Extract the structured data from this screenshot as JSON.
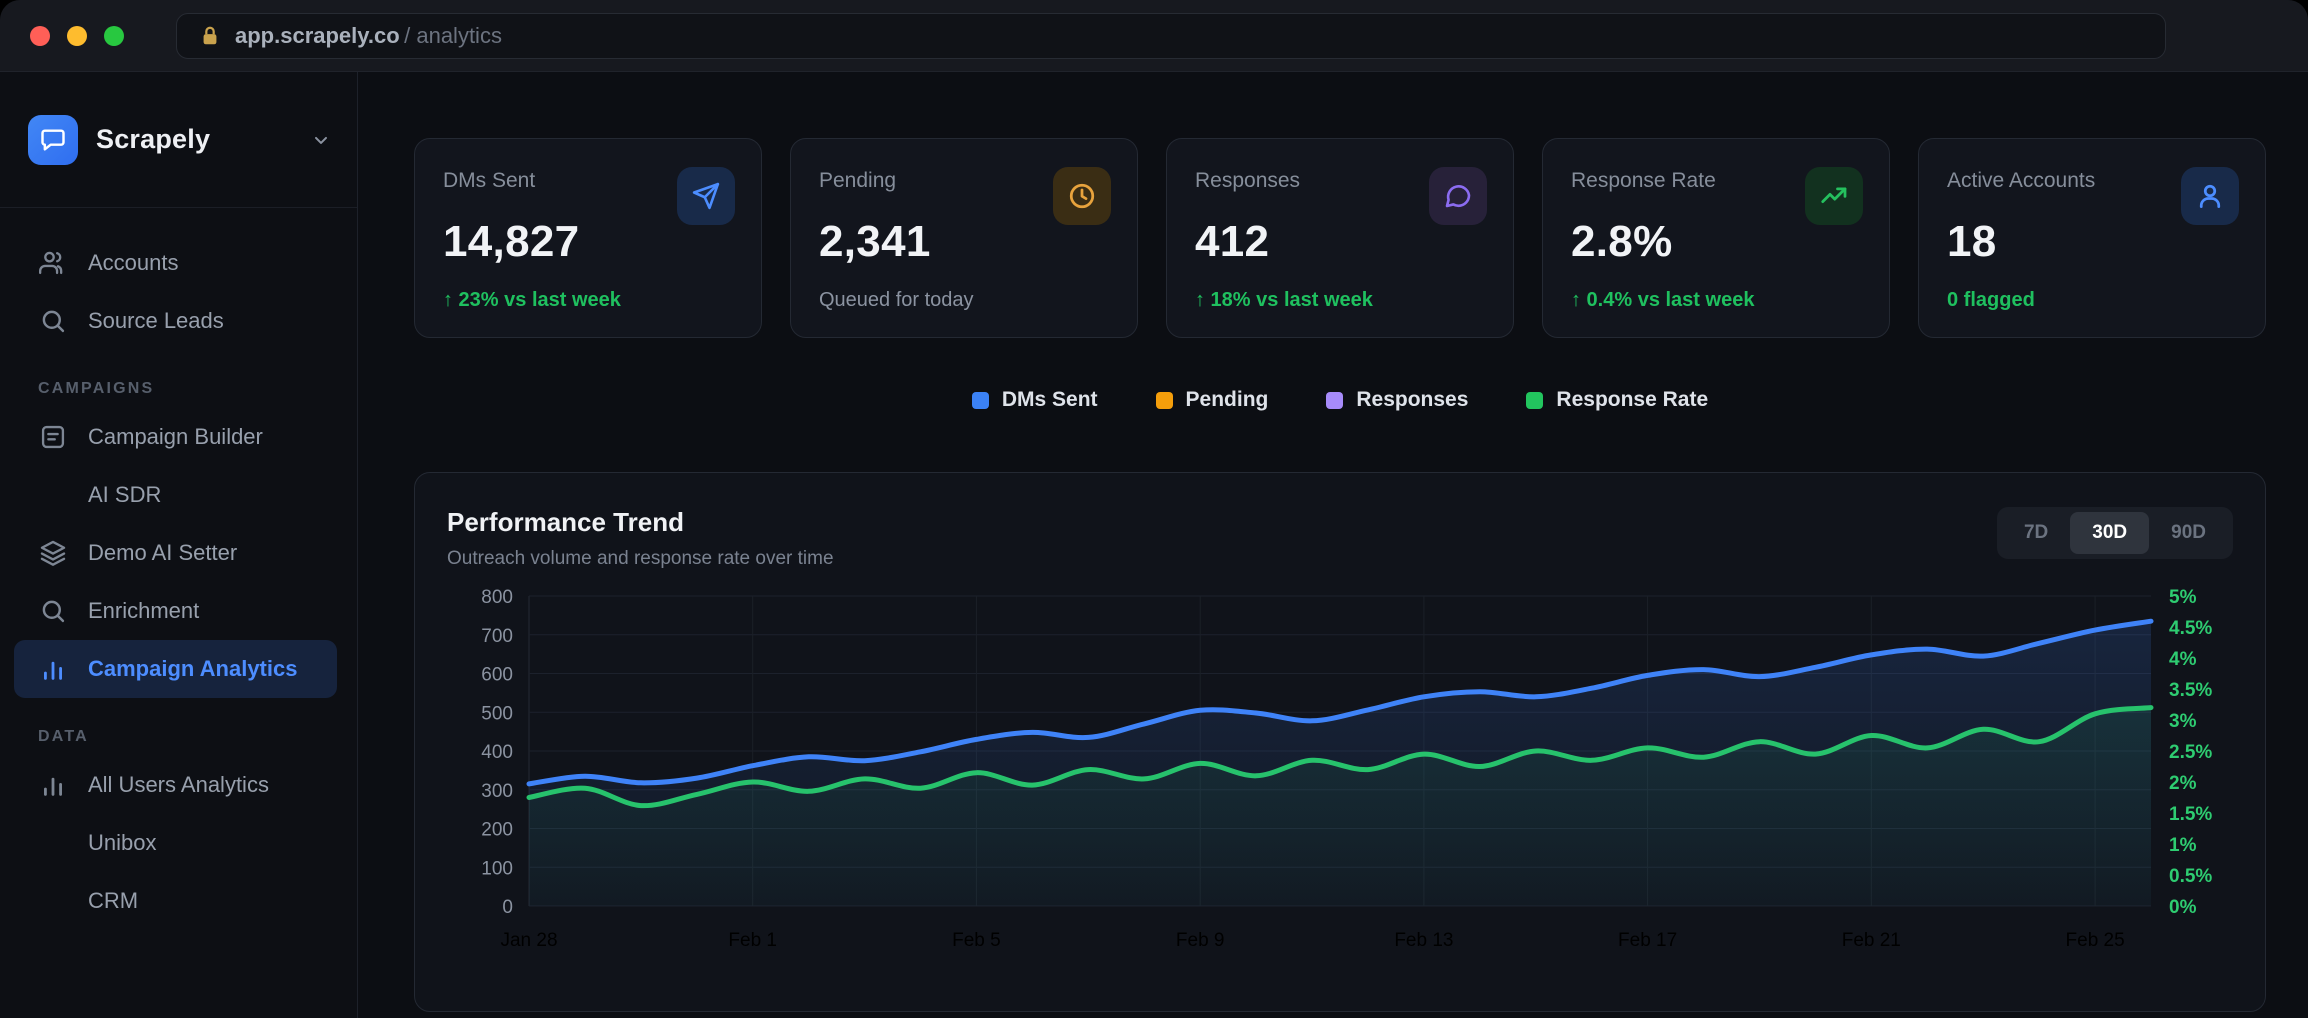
{
  "browser": {
    "host": "app.scrapely.co",
    "path": "/ analytics",
    "lock_color": "#c9a24d",
    "window_buttons": [
      "close",
      "minimize",
      "maximize"
    ]
  },
  "sidebar": {
    "brand": "Scrapely",
    "sections": [
      {
        "header": null,
        "items": [
          {
            "label": "Accounts",
            "icon": "users"
          },
          {
            "label": "Source Leads",
            "icon": "search"
          }
        ]
      },
      {
        "header": "CAMPAIGNS",
        "items": [
          {
            "label": "Campaign Builder",
            "icon": "builder"
          },
          {
            "label": "AI SDR",
            "icon": null
          },
          {
            "label": "Demo AI Setter",
            "icon": "layers"
          },
          {
            "label": "Enrichment",
            "icon": "search"
          },
          {
            "label": "Campaign Analytics",
            "icon": "chart",
            "active": true
          }
        ]
      },
      {
        "header": "DATA",
        "items": [
          {
            "label": "All Users Analytics",
            "icon": "chart"
          },
          {
            "label": "Unibox",
            "icon": null
          },
          {
            "label": "CRM",
            "icon": null
          }
        ]
      }
    ]
  },
  "stat_cards": [
    {
      "label": "DMs Sent",
      "value": "14,827",
      "delta": "↑ 23% vs last week",
      "delta_type": "positive",
      "icon": "send",
      "accent": "#4c8dff",
      "icon_bg": "#182a49"
    },
    {
      "label": "Pending",
      "value": "2,341",
      "delta": "Queued for today",
      "delta_type": "neutral",
      "icon": "clock",
      "accent": "#e8a33d",
      "icon_bg": "#3a2d14"
    },
    {
      "label": "Responses",
      "value": "412",
      "delta": "↑ 18% vs last week",
      "delta_type": "positive",
      "icon": "message",
      "accent": "#8b6cf0",
      "icon_bg": "#272139"
    },
    {
      "label": "Response Rate",
      "value": "2.8%",
      "delta": "↑ 0.4% vs last week",
      "delta_type": "positive",
      "icon": "trend",
      "accent": "#25c05e",
      "icon_bg": "#12311f"
    },
    {
      "label": "Active Accounts",
      "value": "18",
      "delta": "0 flagged",
      "delta_type": "positive",
      "icon": "user",
      "accent": "#4c8dff",
      "icon_bg": "#182a49"
    }
  ],
  "legend": [
    {
      "label": "DMs Sent",
      "color": "#3b82f6"
    },
    {
      "label": "Pending",
      "color": "#f59e0b"
    },
    {
      "label": "Responses",
      "color": "#a78bfa"
    },
    {
      "label": "Response Rate",
      "color": "#22c55e"
    }
  ],
  "time_ranges": {
    "options": [
      "7D",
      "30D",
      "90D"
    ],
    "active": "30D"
  },
  "chart_data": {
    "type": "line",
    "title": "Performance Trend",
    "subtitle": "Outreach volume and response rate over time",
    "x": [
      "Jan 28",
      "Jan 29",
      "Jan 30",
      "Jan 31",
      "Feb 1",
      "Feb 2",
      "Feb 3",
      "Feb 4",
      "Feb 5",
      "Feb 6",
      "Feb 7",
      "Feb 8",
      "Feb 9",
      "Feb 10",
      "Feb 11",
      "Feb 12",
      "Feb 13",
      "Feb 14",
      "Feb 15",
      "Feb 16",
      "Feb 17",
      "Feb 18",
      "Feb 19",
      "Feb 20",
      "Feb 21",
      "Feb 22",
      "Feb 23",
      "Feb 24",
      "Feb 25",
      "Feb 26"
    ],
    "x_tick_labels": [
      "Jan 28",
      "Feb 1",
      "Feb 5",
      "Feb 9",
      "Feb 13",
      "Feb 17",
      "Feb 21",
      "Feb 25"
    ],
    "x_tick_every": 4,
    "left_axis": {
      "min": 0,
      "max": 800,
      "step": 100,
      "label_color": "#8b93a1"
    },
    "right_axis": {
      "min": 0,
      "max": 5,
      "step": 0.5,
      "suffix": "%",
      "label_color": "#2ecc71"
    },
    "grid": true,
    "legend_position": "top-center",
    "series": [
      {
        "name": "DMs Sent",
        "axis": "left",
        "color": "#3f83f8",
        "values": [
          315,
          335,
          318,
          330,
          362,
          385,
          375,
          398,
          430,
          448,
          435,
          470,
          505,
          498,
          478,
          506,
          540,
          553,
          540,
          562,
          595,
          610,
          592,
          616,
          648,
          663,
          645,
          678,
          712,
          735
        ]
      },
      {
        "name": "Response Rate",
        "axis": "right",
        "color": "#27c26c",
        "values": [
          1.75,
          1.9,
          1.62,
          1.8,
          2.0,
          1.85,
          2.05,
          1.9,
          2.15,
          1.95,
          2.2,
          2.05,
          2.3,
          2.1,
          2.35,
          2.2,
          2.45,
          2.25,
          2.5,
          2.35,
          2.55,
          2.4,
          2.65,
          2.45,
          2.75,
          2.55,
          2.85,
          2.65,
          3.1,
          3.2
        ]
      }
    ]
  }
}
